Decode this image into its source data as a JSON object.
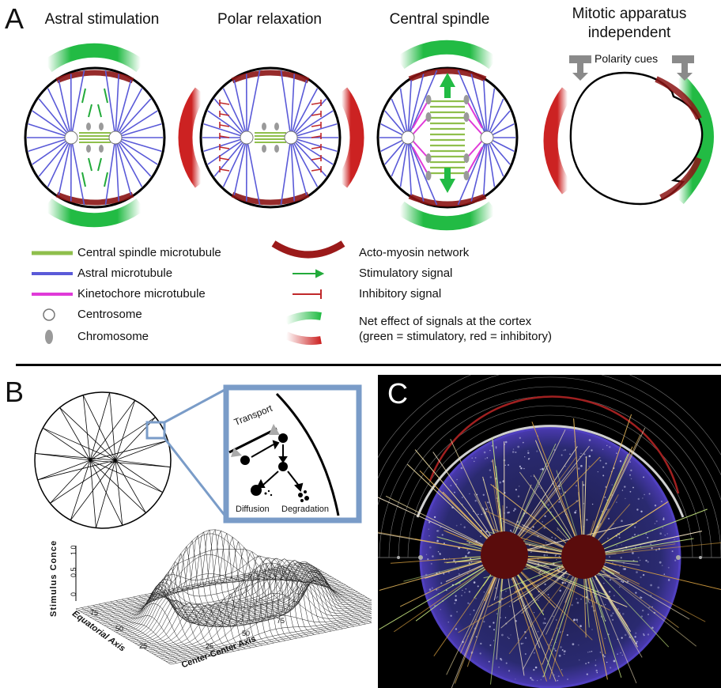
{
  "panelA": {
    "letter": "A",
    "titles": [
      "Astral stimulation",
      "Polar relaxation",
      "Central spindle",
      "Mitotic apparatus independent"
    ],
    "polarity_cues": "Polarity cues",
    "legend_left": [
      {
        "label": "Central spindle microtubule",
        "color": "#8fbf4c"
      },
      {
        "label": "Astral microtubule",
        "color": "#5a5ad8"
      },
      {
        "label": "Kinetochore microtubule",
        "color": "#e03ad8"
      },
      {
        "label": "Centrosome",
        "color": "#ffffff"
      },
      {
        "label": "Chromosome",
        "color": "#9a9a9a"
      }
    ],
    "legend_right": [
      {
        "label": "Acto-myosin network",
        "color": "#9b1a1a"
      },
      {
        "label": "Stimulatory signal",
        "color": "#22aa3a"
      },
      {
        "label": "Inhibitory signal",
        "color": "#c0282a"
      },
      {
        "label": "Net effect of signals at the cortex",
        "color": "#22bb44"
      },
      {
        "label": "(green = stimulatory, red = inhibitory)",
        "color": "#cc2222"
      }
    ]
  },
  "panelB": {
    "letter": "B",
    "inset": {
      "transport": "Transport",
      "diffusion": "Diffusion",
      "degradation": "Degradation"
    },
    "surface": {
      "z_label": "Stimulus Conce",
      "z_ticks": [
        "0",
        "0.5",
        "1.0"
      ],
      "x_label": "Center-Center Axis",
      "x_ticks": [
        "25",
        "50",
        "75"
      ],
      "y_label": "Equatorial Axis",
      "y_ticks": [
        "75",
        "50",
        "25"
      ]
    }
  },
  "panelC": {
    "letter": "C"
  }
}
